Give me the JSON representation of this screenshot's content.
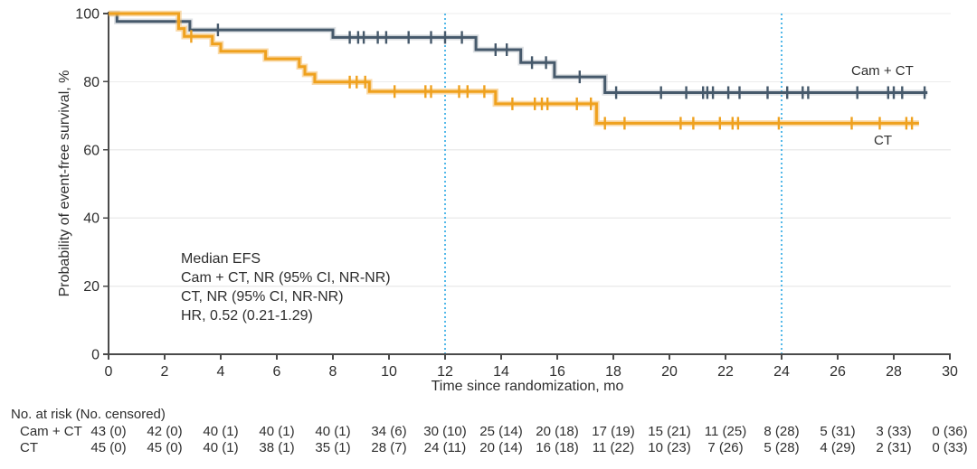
{
  "chart_data": {
    "type": "line",
    "subtype": "kaplan-meier-step",
    "title": "",
    "xlabel": "Time since randomization, mo",
    "ylabel": "Probability of event-free survival, %",
    "xlim": [
      0,
      30
    ],
    "ylim": [
      0,
      100
    ],
    "xticks": [
      0,
      2,
      4,
      6,
      8,
      10,
      12,
      14,
      16,
      18,
      20,
      22,
      24,
      26,
      28,
      30
    ],
    "yticks": [
      0,
      20,
      40,
      60,
      80,
      100
    ],
    "grid": "horizontal",
    "reference_lines_x": [
      12,
      24
    ],
    "series": [
      {
        "name": "Cam + CT",
        "color": "#46596B",
        "halo": "rgba(70,89,107,0.18)",
        "start_survival": 100,
        "steps": [
          [
            0.3,
            97.7
          ],
          [
            2.9,
            95.2
          ],
          [
            8.0,
            93.0
          ],
          [
            13.1,
            89.4
          ],
          [
            14.7,
            85.6
          ],
          [
            15.9,
            81.4
          ],
          [
            17.7,
            76.8
          ]
        ],
        "end_time": 29.2,
        "censor_marks": [
          [
            3.9,
            95.2
          ],
          [
            8.6,
            93.0
          ],
          [
            8.9,
            93.0
          ],
          [
            9.1,
            93.0
          ],
          [
            9.6,
            93.0
          ],
          [
            9.9,
            93.0
          ],
          [
            10.7,
            93.0
          ],
          [
            11.5,
            93.0
          ],
          [
            12.0,
            93.0
          ],
          [
            12.6,
            93.0
          ],
          [
            13.8,
            89.4
          ],
          [
            14.2,
            89.4
          ],
          [
            15.1,
            85.6
          ],
          [
            15.6,
            85.6
          ],
          [
            16.8,
            81.4
          ],
          [
            18.1,
            76.8
          ],
          [
            19.7,
            76.8
          ],
          [
            20.6,
            76.8
          ],
          [
            21.2,
            76.8
          ],
          [
            21.35,
            76.8
          ],
          [
            21.55,
            76.8
          ],
          [
            22.1,
            76.8
          ],
          [
            22.5,
            76.8
          ],
          [
            23.5,
            76.8
          ],
          [
            24.2,
            76.8
          ],
          [
            24.75,
            76.8
          ],
          [
            24.95,
            76.8
          ],
          [
            26.7,
            76.8
          ],
          [
            27.8,
            76.8
          ],
          [
            28.0,
            76.8
          ],
          [
            28.3,
            76.8
          ],
          [
            29.1,
            76.8
          ]
        ]
      },
      {
        "name": "CT",
        "color": "#EFA11E",
        "halo": "rgba(244,188,100,0.55)",
        "start_survival": 100,
        "steps": [
          [
            2.5,
            95.6
          ],
          [
            2.7,
            93.3
          ],
          [
            3.7,
            91.1
          ],
          [
            4.0,
            88.9
          ],
          [
            5.6,
            86.7
          ],
          [
            6.8,
            84.4
          ],
          [
            7.0,
            82.2
          ],
          [
            7.35,
            79.9
          ],
          [
            9.3,
            77.1
          ],
          [
            13.8,
            73.5
          ],
          [
            17.4,
            67.8
          ]
        ],
        "end_time": 28.9,
        "censor_marks": [
          [
            2.95,
            93.3
          ],
          [
            8.6,
            79.9
          ],
          [
            8.85,
            79.9
          ],
          [
            9.15,
            79.9
          ],
          [
            10.2,
            77.1
          ],
          [
            11.3,
            77.1
          ],
          [
            11.5,
            77.1
          ],
          [
            12.5,
            77.1
          ],
          [
            12.8,
            77.1
          ],
          [
            13.4,
            77.1
          ],
          [
            14.4,
            73.5
          ],
          [
            15.2,
            73.5
          ],
          [
            15.45,
            73.5
          ],
          [
            15.65,
            73.5
          ],
          [
            16.7,
            73.5
          ],
          [
            17.2,
            73.5
          ],
          [
            17.7,
            67.8
          ],
          [
            18.4,
            67.8
          ],
          [
            20.4,
            67.8
          ],
          [
            20.85,
            67.8
          ],
          [
            21.8,
            67.8
          ],
          [
            22.25,
            67.8
          ],
          [
            22.45,
            67.8
          ],
          [
            23.9,
            67.8
          ],
          [
            26.5,
            67.8
          ],
          [
            27.5,
            67.8
          ],
          [
            28.45,
            67.8
          ],
          [
            28.65,
            67.8
          ]
        ]
      }
    ]
  },
  "annotation": {
    "lines": [
      "Median EFS",
      "Cam + CT, NR (95% CI, NR-NR)",
      "CT, NR (95% CI, NR-NR)",
      "HR, 0.52 (0.21-1.29)"
    ]
  },
  "risk_table": {
    "header": "No. at risk (No. censored)",
    "times": [
      0,
      2,
      4,
      6,
      8,
      10,
      12,
      14,
      16,
      18,
      20,
      22,
      24,
      26,
      28,
      30
    ],
    "rows": [
      {
        "label": "Cam + CT",
        "values": [
          "43 (0)",
          "42 (0)",
          "40 (1)",
          "40 (1)",
          "40 (1)",
          "34 (6)",
          "30 (10)",
          "25 (14)",
          "20 (18)",
          "17 (19)",
          "15 (21)",
          "11 (25)",
          "8 (28)",
          "5 (31)",
          "3 (33)",
          "0 (36)"
        ]
      },
      {
        "label": "CT",
        "values": [
          "45 (0)",
          "45 (0)",
          "40 (1)",
          "38 (1)",
          "35 (1)",
          "28 (7)",
          "24 (11)",
          "20 (14)",
          "16 (18)",
          "11 (22)",
          "10 (23)",
          "7 (26)",
          "5 (28)",
          "4 (29)",
          "2 (31)",
          "0 (33)"
        ]
      }
    ]
  },
  "colors": {
    "reference_line": "#54B9E9",
    "grid": "#ECECEC",
    "axis": "#4A4A4A",
    "text": "#2E2E2E"
  }
}
